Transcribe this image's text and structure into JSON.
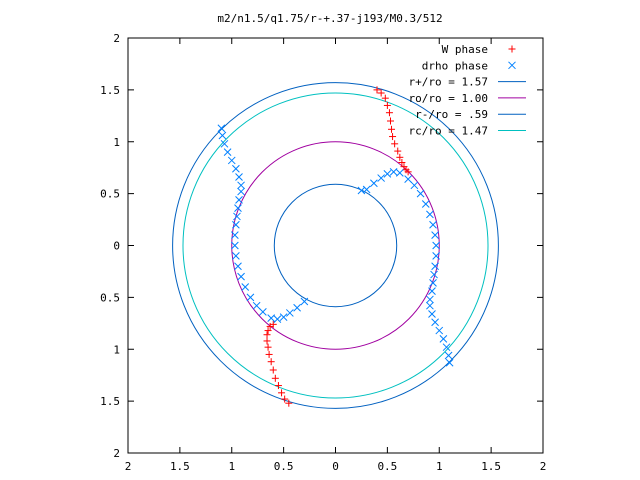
{
  "chart_data": {
    "type": "scatter",
    "title": "m2/n1.5/q1.75/r-+.37-j193/M0.3/512",
    "xlabel": "",
    "ylabel": "",
    "xlim": [
      -2,
      2
    ],
    "ylim": [
      -2,
      2
    ],
    "x_ticks": [
      -2,
      -1.5,
      -1,
      -0.5,
      0,
      0.5,
      1,
      1.5,
      2
    ],
    "y_ticks": [
      -2,
      -1.5,
      -1,
      -0.5,
      0,
      0.5,
      1,
      1.5,
      2
    ],
    "x_tick_labels": [
      "2",
      "1.5",
      "1",
      "0.5",
      "0",
      "0.5",
      "1",
      "1.5",
      "2"
    ],
    "y_tick_labels": [
      "2",
      "1.5",
      "1",
      "0.5",
      "0",
      "0.5",
      "1",
      "1.5",
      "2"
    ],
    "grid": false,
    "legend_position": "top-right",
    "legend": [
      {
        "label": "W phase",
        "color": "#ff0000",
        "marker": "plus"
      },
      {
        "label": "drho phase",
        "color": "#0080ff",
        "marker": "cross"
      },
      {
        "label": "r+/ro = 1.57",
        "color": "#0060c0",
        "marker": "line"
      },
      {
        "label": "ro/ro = 1.00",
        "color": "#a000a0",
        "marker": "line"
      },
      {
        "label": "r-/ro = .59",
        "color": "#0060c0",
        "marker": "line"
      },
      {
        "label": "rc/ro = 1.47",
        "color": "#00c0c0",
        "marker": "line"
      }
    ],
    "circles": [
      {
        "name": "r+/ro",
        "r": 1.57,
        "color": "#0060c0"
      },
      {
        "name": "ro/ro",
        "r": 1.0,
        "color": "#a000a0"
      },
      {
        "name": "r-/ro",
        "r": 0.59,
        "color": "#0060c0"
      },
      {
        "name": "rc/ro",
        "r": 1.47,
        "color": "#00c0c0"
      }
    ],
    "series": [
      {
        "name": "W phase",
        "marker": "plus",
        "color": "#ff0000",
        "points": [
          [
            0.4,
            1.5
          ],
          [
            0.44,
            1.47
          ],
          [
            0.48,
            1.42
          ],
          [
            0.5,
            1.35
          ],
          [
            0.52,
            1.28
          ],
          [
            0.53,
            1.2
          ],
          [
            0.54,
            1.12
          ],
          [
            0.55,
            1.05
          ],
          [
            0.57,
            0.98
          ],
          [
            0.6,
            0.91
          ],
          [
            0.62,
            0.85
          ],
          [
            0.64,
            0.8
          ],
          [
            0.66,
            0.76
          ],
          [
            0.68,
            0.73
          ],
          [
            0.7,
            0.71
          ],
          [
            -0.45,
            -1.52
          ],
          [
            -0.49,
            -1.48
          ],
          [
            -0.52,
            -1.42
          ],
          [
            -0.55,
            -1.35
          ],
          [
            -0.58,
            -1.28
          ],
          [
            -0.6,
            -1.2
          ],
          [
            -0.62,
            -1.12
          ],
          [
            -0.64,
            -1.05
          ],
          [
            -0.65,
            -0.98
          ],
          [
            -0.66,
            -0.92
          ],
          [
            -0.66,
            -0.86
          ],
          [
            -0.65,
            -0.82
          ],
          [
            -0.63,
            -0.78
          ],
          [
            -0.6,
            -0.76
          ]
        ]
      },
      {
        "name": "drho phase",
        "marker": "cross",
        "color": "#0080ff",
        "points": [
          [
            -1.1,
            1.13
          ],
          [
            -1.09,
            1.06
          ],
          [
            -1.07,
            0.98
          ],
          [
            -1.04,
            0.9
          ],
          [
            -1.0,
            0.82
          ],
          [
            -0.96,
            0.74
          ],
          [
            -0.93,
            0.66
          ],
          [
            -0.91,
            0.58
          ],
          [
            -0.91,
            0.52
          ],
          [
            -0.93,
            0.44
          ],
          [
            -0.94,
            0.36
          ],
          [
            -0.95,
            0.28
          ],
          [
            -0.96,
            0.2
          ],
          [
            -0.97,
            0.1
          ],
          [
            -0.97,
            0.0
          ],
          [
            -0.96,
            -0.1
          ],
          [
            -0.94,
            -0.2
          ],
          [
            -0.91,
            -0.3
          ],
          [
            -0.87,
            -0.4
          ],
          [
            -0.82,
            -0.5
          ],
          [
            -0.76,
            -0.58
          ],
          [
            -0.7,
            -0.64
          ],
          [
            -0.62,
            -0.7
          ],
          [
            -0.56,
            -0.71
          ],
          [
            -0.5,
            -0.69
          ],
          [
            -0.44,
            -0.65
          ],
          [
            -0.37,
            -0.6
          ],
          [
            -0.3,
            -0.54
          ],
          [
            1.1,
            -1.13
          ],
          [
            1.09,
            -1.06
          ],
          [
            1.07,
            -0.98
          ],
          [
            1.04,
            -0.9
          ],
          [
            1.0,
            -0.82
          ],
          [
            0.96,
            -0.74
          ],
          [
            0.93,
            -0.66
          ],
          [
            0.91,
            -0.58
          ],
          [
            0.91,
            -0.52
          ],
          [
            0.93,
            -0.44
          ],
          [
            0.94,
            -0.36
          ],
          [
            0.95,
            -0.28
          ],
          [
            0.96,
            -0.2
          ],
          [
            0.97,
            -0.1
          ],
          [
            0.97,
            0.0
          ],
          [
            0.96,
            0.1
          ],
          [
            0.94,
            0.2
          ],
          [
            0.91,
            0.3
          ],
          [
            0.87,
            0.4
          ],
          [
            0.82,
            0.5
          ],
          [
            0.76,
            0.58
          ],
          [
            0.7,
            0.64
          ],
          [
            0.62,
            0.7
          ],
          [
            0.56,
            0.71
          ],
          [
            0.5,
            0.69
          ],
          [
            0.44,
            0.65
          ],
          [
            0.37,
            0.6
          ],
          [
            0.3,
            0.54
          ],
          [
            0.25,
            0.53
          ]
        ]
      }
    ]
  }
}
